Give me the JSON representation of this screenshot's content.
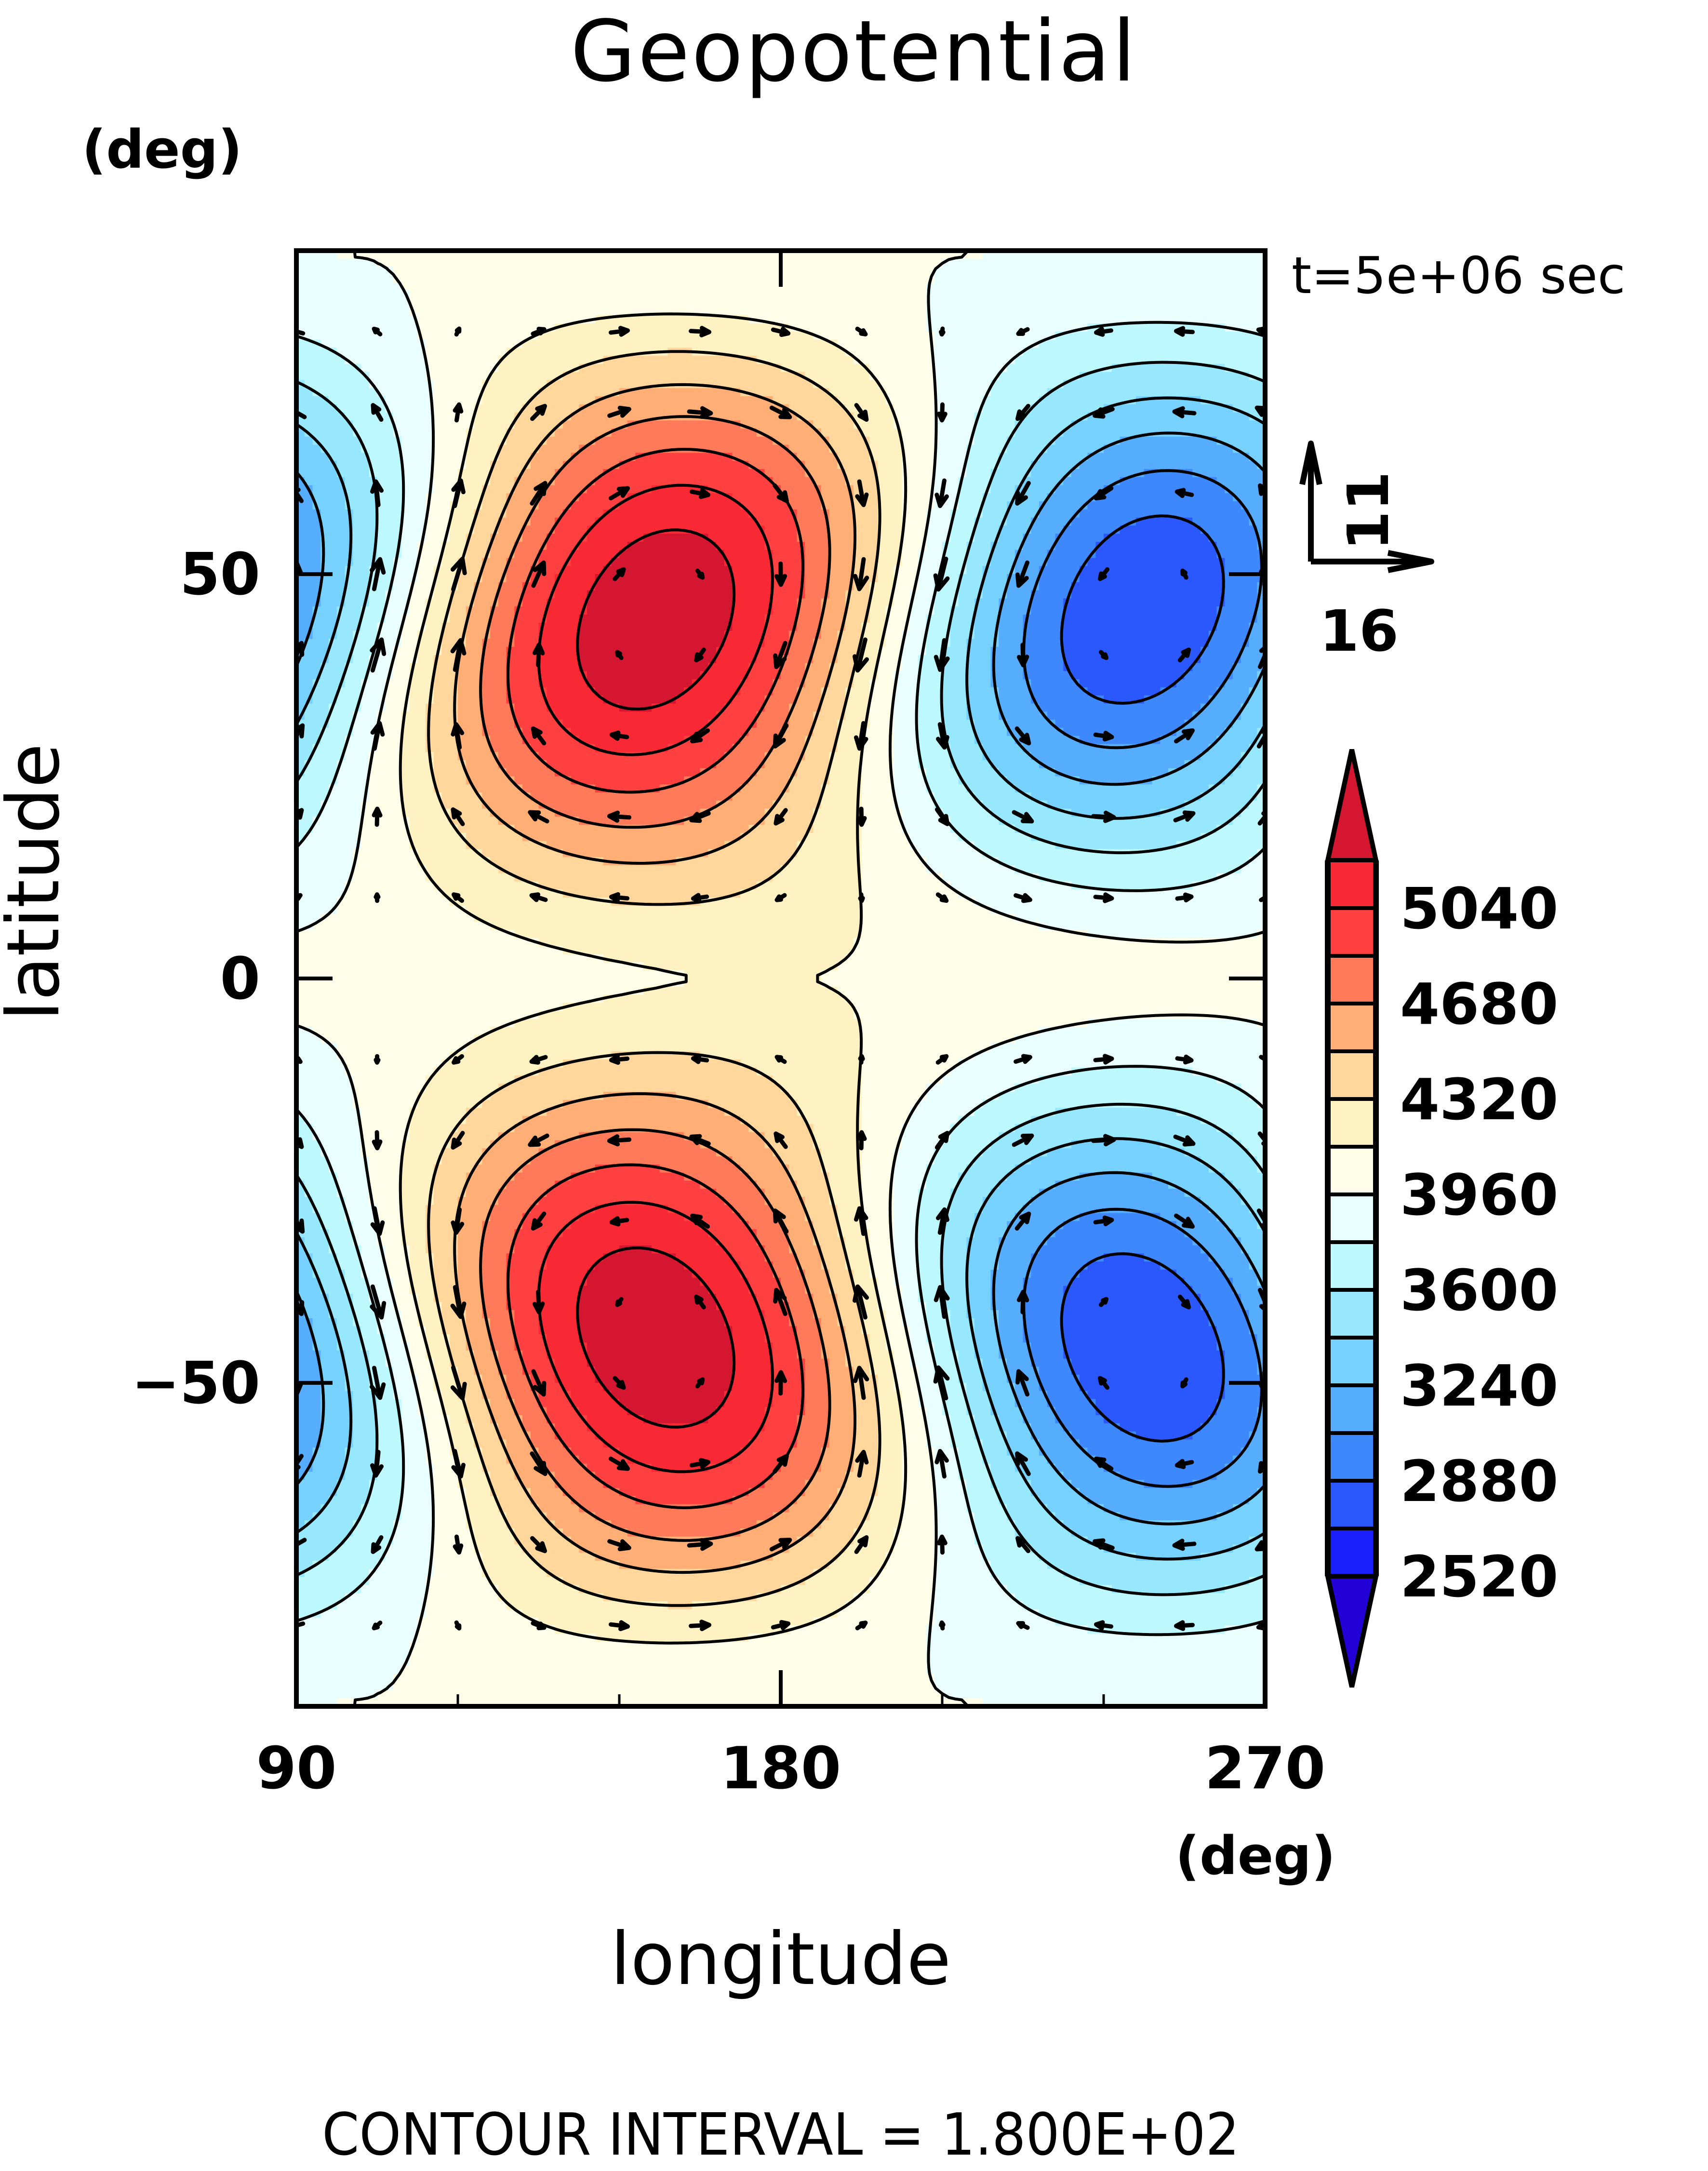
{
  "chart_data": {
    "type": "heatmap",
    "subtype": "filled-contour-with-vectors",
    "title": "Geopotential",
    "xlabel": "longitude",
    "xunit": "(deg)",
    "ylabel": "latitude",
    "yunit": "(deg)",
    "time_annotation": "t=5e+06 sec",
    "footer": "CONTOUR INTERVAL = 1.800E+02",
    "xlim": [
      90,
      270
    ],
    "ylim": [
      -90,
      90
    ],
    "xticks": [
      90,
      180,
      270
    ],
    "xtick_labels": [
      "90",
      "180",
      "270"
    ],
    "yticks": [
      50,
      0,
      -50
    ],
    "ytick_labels": [
      "50",
      "0",
      "−50"
    ],
    "contour_interval": 180,
    "levels": [
      2340,
      2520,
      2700,
      2880,
      3060,
      3240,
      3420,
      3600,
      3780,
      3960,
      4140,
      4320,
      4500,
      4680,
      4860,
      5040,
      5220
    ],
    "colorbar": {
      "labels": [
        "5040",
        "4680",
        "4320",
        "3960",
        "3600",
        "3240",
        "2880",
        "2520"
      ],
      "label_values": [
        5040,
        4680,
        4320,
        3960,
        3600,
        3240,
        2880,
        2520
      ],
      "extend": "both",
      "colors_top_to_bottom": [
        "#d51630",
        "#f82834",
        "#ff4040",
        "#ff7a58",
        "#ffae76",
        "#ffd79c",
        "#fff2c2",
        "#fffee8",
        "#e8fffe",
        "#bcf8fd",
        "#98e8fd",
        "#76d1fd",
        "#56adfd",
        "#3e88fd",
        "#2a58fd",
        "#1a1efa",
        "#2200d6"
      ]
    },
    "field_features": [
      {
        "type": "high",
        "lon": 157,
        "lat": 45,
        "value_approx": 5100
      },
      {
        "type": "high",
        "lon": 157,
        "lat": -45,
        "value_approx": 5100
      },
      {
        "type": "low",
        "lon": 247,
        "lat": 45,
        "value_approx": 2450
      },
      {
        "type": "low",
        "lon": 247,
        "lat": -45,
        "value_approx": 2450
      },
      {
        "type": "low-partial",
        "lon": 90,
        "lat": 50,
        "value_approx": 3000
      },
      {
        "type": "low-partial",
        "lon": 90,
        "lat": -50,
        "value_approx": 3000
      }
    ],
    "vector_reference": {
      "u": 16,
      "v": 11,
      "u_label": "16",
      "v_label": "11"
    }
  }
}
